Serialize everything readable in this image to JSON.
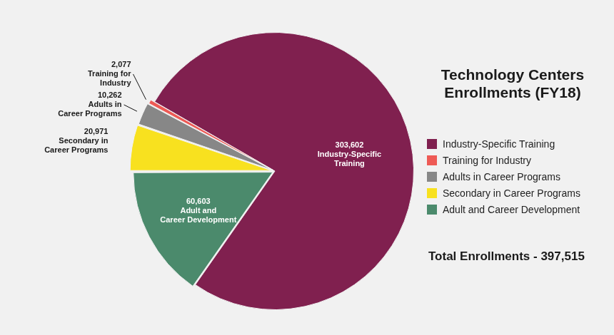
{
  "chart_data": {
    "type": "pie",
    "title": "Technology Centers Enrollments (FY18)",
    "categories": [
      "Industry-Specific Training",
      "Training for Industry",
      "Adults in Career Programs",
      "Secondary in Career Programs",
      "Adult and Career Development"
    ],
    "values": [
      303602,
      2077,
      10262,
      20971,
      60603
    ],
    "value_labels": [
      "303,602",
      "2,077",
      "10,262",
      "20,971",
      "60,603"
    ],
    "colors": [
      "#80204f",
      "#ee5a55",
      "#878787",
      "#f8e11f",
      "#4b8a6c"
    ],
    "legend": "right",
    "data_labels": true,
    "annotations": [
      "Total Enrollments - 397,515"
    ]
  }
}
